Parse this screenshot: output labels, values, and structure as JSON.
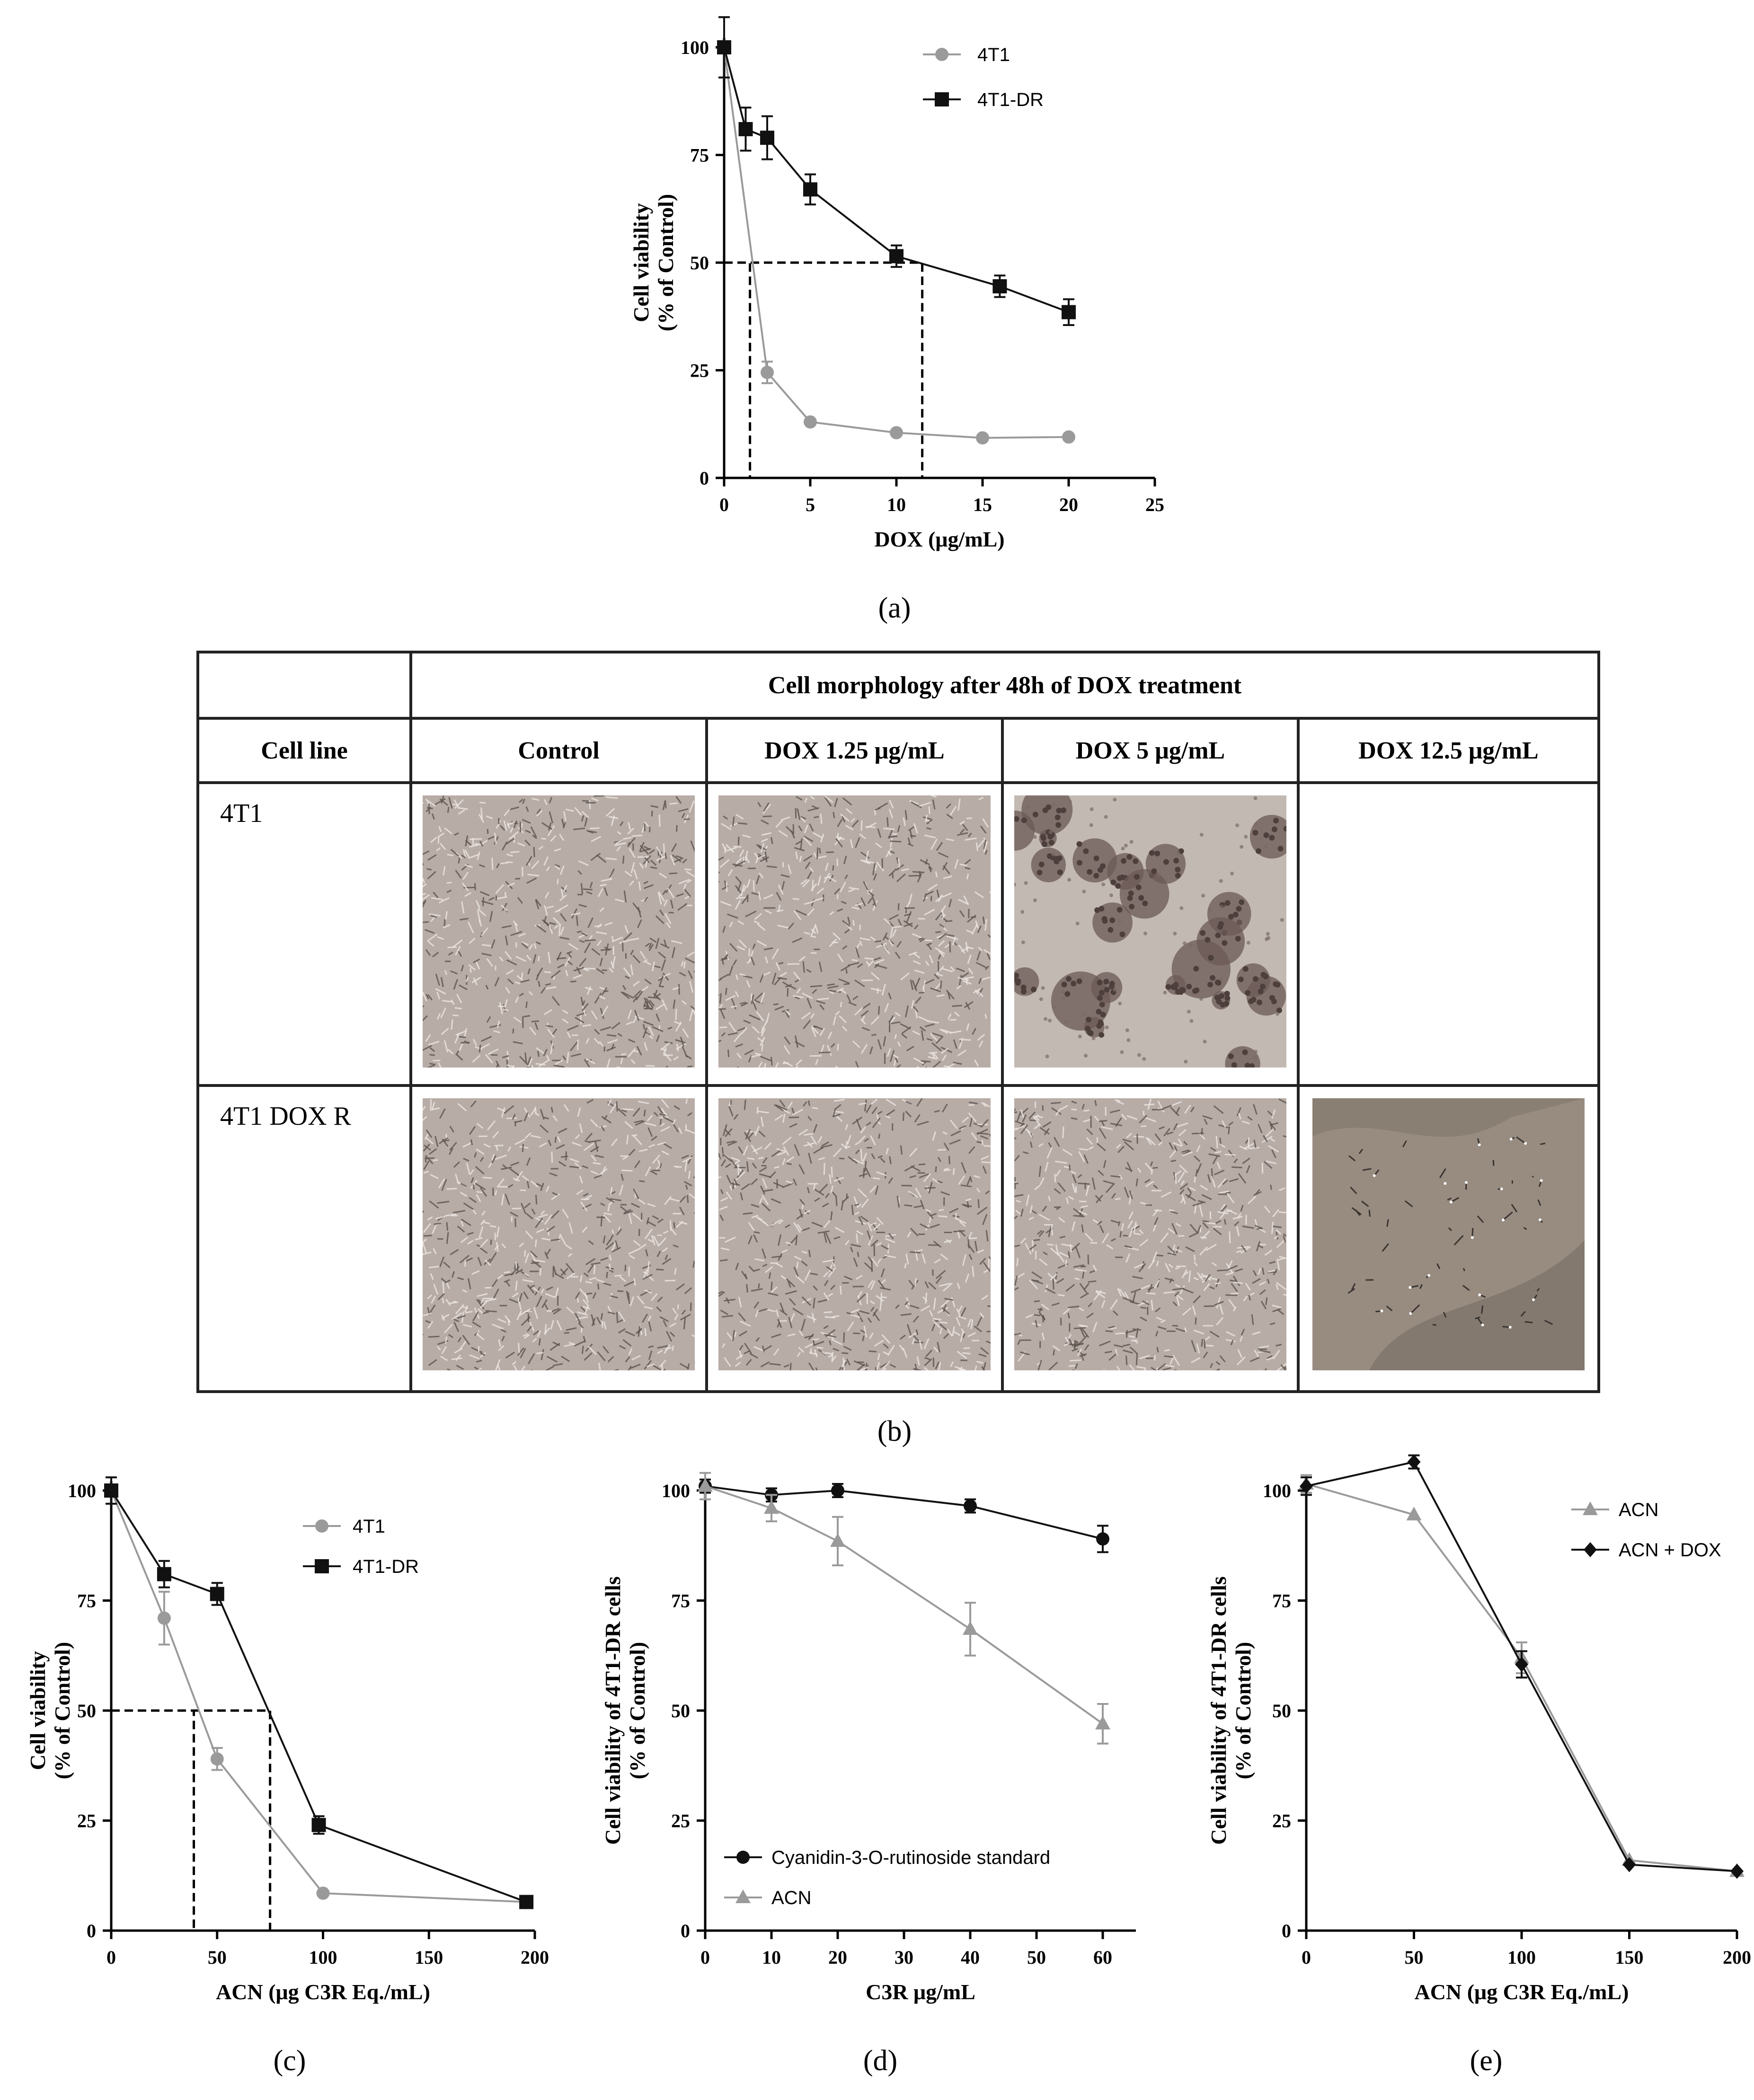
{
  "colors": {
    "gray": "#9a9a9a",
    "black": "#111111",
    "axis": "#000000"
  },
  "panels": {
    "a": "(a)",
    "b": "(b)",
    "c": "(c)",
    "d": "(d)",
    "e": "(e)"
  },
  "table": {
    "group_header": "Cell morphology after 48h of DOX treatment",
    "headers": [
      "Cell line",
      "Control",
      "DOX 1.25 μg/mL",
      "DOX 5 μg/mL",
      "DOX 12.5 μg/mL"
    ],
    "rows": [
      {
        "label": "4T1",
        "images": [
          "dense-monolayer-micrograph",
          "dense-monolayer-micrograph",
          "clustered-rounded-cells-micrograph",
          "empty"
        ]
      },
      {
        "label": "4T1 DOX R",
        "images": [
          "dense-monolayer-micrograph",
          "dense-monolayer-micrograph",
          "dense-monolayer-micrograph",
          "sparse-cells-micrograph"
        ]
      }
    ]
  },
  "chart_data": [
    {
      "panel": "a",
      "type": "line",
      "xlabel": "DOX (μg/mL)",
      "ylabel": "Cell viability\n(% of Control)",
      "xlim": [
        0,
        25
      ],
      "ylim": [
        0,
        100
      ],
      "xticks": [
        0,
        5,
        10,
        15,
        20,
        25
      ],
      "yticks": [
        0,
        25,
        50,
        75,
        100
      ],
      "legend_position": "top-right",
      "series": [
        {
          "name": "4T1",
          "marker": "circle",
          "color": "gray",
          "x": [
            0,
            2.5,
            5,
            10,
            15,
            20
          ],
          "y": [
            100,
            24.5,
            13,
            10.5,
            9.3,
            9.5
          ],
          "err": [
            7,
            2.5,
            0,
            0,
            0,
            0
          ]
        },
        {
          "name": "4T1-DR",
          "marker": "square",
          "color": "black",
          "x": [
            0,
            1.25,
            2.5,
            5,
            10,
            16,
            20
          ],
          "y": [
            100,
            81,
            79,
            67,
            51.5,
            44.5,
            38.5
          ],
          "err": [
            7,
            5,
            5,
            3.5,
            2.5,
            2.5,
            3
          ]
        }
      ],
      "ic50_lines": [
        {
          "y": 50,
          "x": 1.5
        },
        {
          "y": 50,
          "x": 11.5
        }
      ]
    },
    {
      "panel": "c",
      "type": "line",
      "xlabel": "ACN (μg C3R Eq./mL)",
      "ylabel": "Cell viability\n(% of Control)",
      "xlim": [
        0,
        200
      ],
      "ylim": [
        0,
        100
      ],
      "xticks": [
        0,
        50,
        100,
        150,
        200
      ],
      "yticks": [
        0,
        25,
        50,
        75,
        100
      ],
      "legend_position": "top-right",
      "series": [
        {
          "name": "4T1",
          "marker": "circle",
          "color": "gray",
          "x": [
            0,
            25,
            50,
            100,
            196
          ],
          "y": [
            100,
            71,
            39,
            8.5,
            6.5
          ],
          "err": [
            3,
            6,
            2.5,
            0,
            1
          ]
        },
        {
          "name": "4T1-DR",
          "marker": "square",
          "color": "black",
          "x": [
            0,
            25,
            50,
            98,
            196
          ],
          "y": [
            100,
            81,
            76.5,
            24,
            6.5
          ],
          "err": [
            3,
            3,
            2.5,
            2,
            1
          ]
        }
      ],
      "ic50_lines": [
        {
          "y": 50,
          "x": 39
        },
        {
          "y": 50,
          "x": 75
        }
      ]
    },
    {
      "panel": "d",
      "type": "line",
      "xlabel": "C3R μg/mL",
      "ylabel": "Cell viability of 4T1-DR cells\n(% of Control)",
      "xlim": [
        0,
        65
      ],
      "ylim": [
        0,
        100
      ],
      "xticks": [
        0,
        10,
        20,
        30,
        40,
        50,
        60
      ],
      "yticks": [
        0,
        25,
        50,
        75,
        100
      ],
      "legend_position": "bottom-left",
      "series": [
        {
          "name": "Cyanidin-3-O-rutinoside standard",
          "marker": "circle",
          "color": "black",
          "x": [
            0,
            10,
            20,
            40,
            60
          ],
          "y": [
            101,
            99,
            100,
            96.5,
            89
          ],
          "err": [
            1.5,
            1.5,
            1.5,
            1.5,
            3
          ]
        },
        {
          "name": "ACN",
          "marker": "triangle",
          "color": "gray",
          "x": [
            0,
            10,
            20,
            40,
            60
          ],
          "y": [
            101,
            96,
            88.5,
            68.5,
            47
          ],
          "err": [
            3,
            3,
            5.5,
            6,
            4.5
          ]
        }
      ]
    },
    {
      "panel": "e",
      "type": "line",
      "xlabel": "ACN (μg C3R Eq./mL)",
      "ylabel": "Cell viability of 4T1-DR cells\n(% of Control)",
      "xlim": [
        0,
        200
      ],
      "ylim": [
        0,
        100
      ],
      "xticks": [
        0,
        50,
        100,
        150,
        200
      ],
      "yticks": [
        0,
        25,
        50,
        75,
        100
      ],
      "legend_position": "top-right",
      "series": [
        {
          "name": "ACN",
          "marker": "triangle",
          "color": "gray",
          "x": [
            0,
            50,
            100,
            150,
            200
          ],
          "y": [
            101.5,
            94.5,
            62,
            16,
            13.5
          ],
          "err": [
            2,
            0,
            3.5,
            0,
            0
          ]
        },
        {
          "name": "ACN + DOX",
          "marker": "diamond",
          "color": "black",
          "x": [
            0,
            50,
            100,
            150,
            200
          ],
          "y": [
            101,
            106.5,
            60.5,
            15,
            13.5
          ],
          "err": [
            2,
            1.5,
            3,
            0,
            0
          ]
        }
      ]
    }
  ]
}
